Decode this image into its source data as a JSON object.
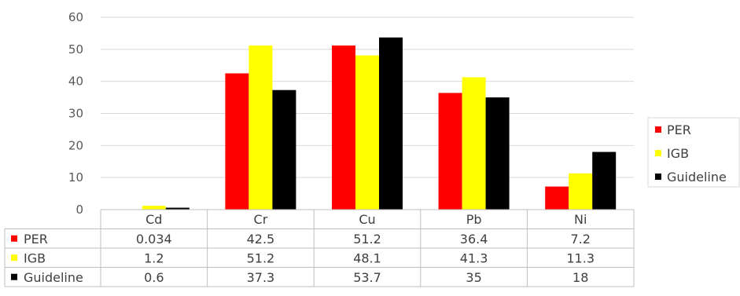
{
  "chart_data": {
    "type": "bar",
    "categories": [
      "Cd",
      "Cr",
      "Cu",
      "Pb",
      "Ni"
    ],
    "series": [
      {
        "name": "PER",
        "color": "#ff0000",
        "values": [
          0.034,
          42.5,
          51.2,
          36.4,
          7.2
        ],
        "labels": [
          "0.034",
          "42.5",
          "51.2",
          "36.4",
          "7.2"
        ]
      },
      {
        "name": "IGB",
        "color": "#ffff00",
        "values": [
          1.2,
          51.2,
          48.1,
          41.3,
          11.3
        ],
        "labels": [
          "1.2",
          "51.2",
          "48.1",
          "41.3",
          "11.3"
        ]
      },
      {
        "name": "Guideline",
        "color": "#000000",
        "values": [
          0.6,
          37.3,
          53.7,
          35,
          18
        ],
        "labels": [
          "0.6",
          "37.3",
          "53.7",
          "35",
          "18"
        ]
      }
    ],
    "ylim": [
      0,
      60
    ],
    "yticks": [
      0,
      10,
      20,
      30,
      40,
      50,
      60
    ],
    "grid": true,
    "legend_position": "right",
    "data_table": true
  }
}
